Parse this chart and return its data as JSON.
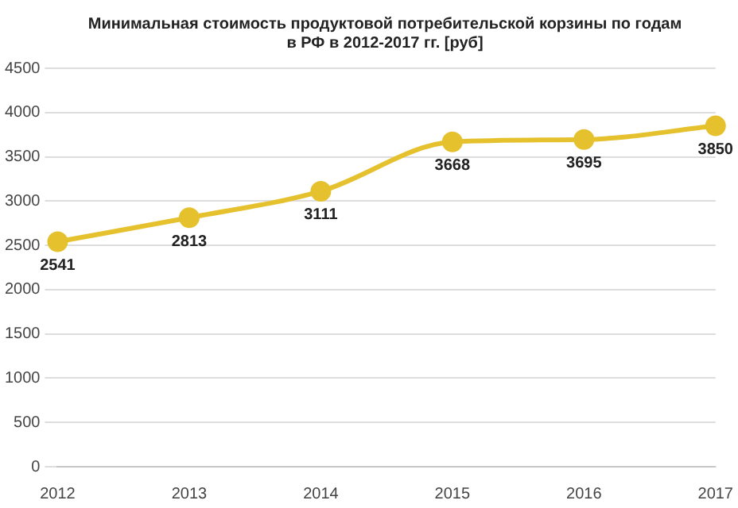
{
  "chart_data": {
    "type": "line",
    "title": "Минимальная стоимость продуктовой потребительской корзины по годам в РФ в 2012-2017 гг. [руб]",
    "categories": [
      "2012",
      "2013",
      "2014",
      "2015",
      "2016",
      "2017"
    ],
    "series": [
      {
        "color": "#e6c12e",
        "values": [
          2541,
          2813,
          3111,
          3668,
          3695,
          3850
        ]
      }
    ],
    "ylim": [
      0,
      4500
    ],
    "yticks": [
      0,
      500,
      1000,
      1500,
      2000,
      2500,
      3000,
      3500,
      4000,
      4500
    ],
    "grid": "y",
    "marker": "circle",
    "data_labels": true,
    "legend": false
  }
}
